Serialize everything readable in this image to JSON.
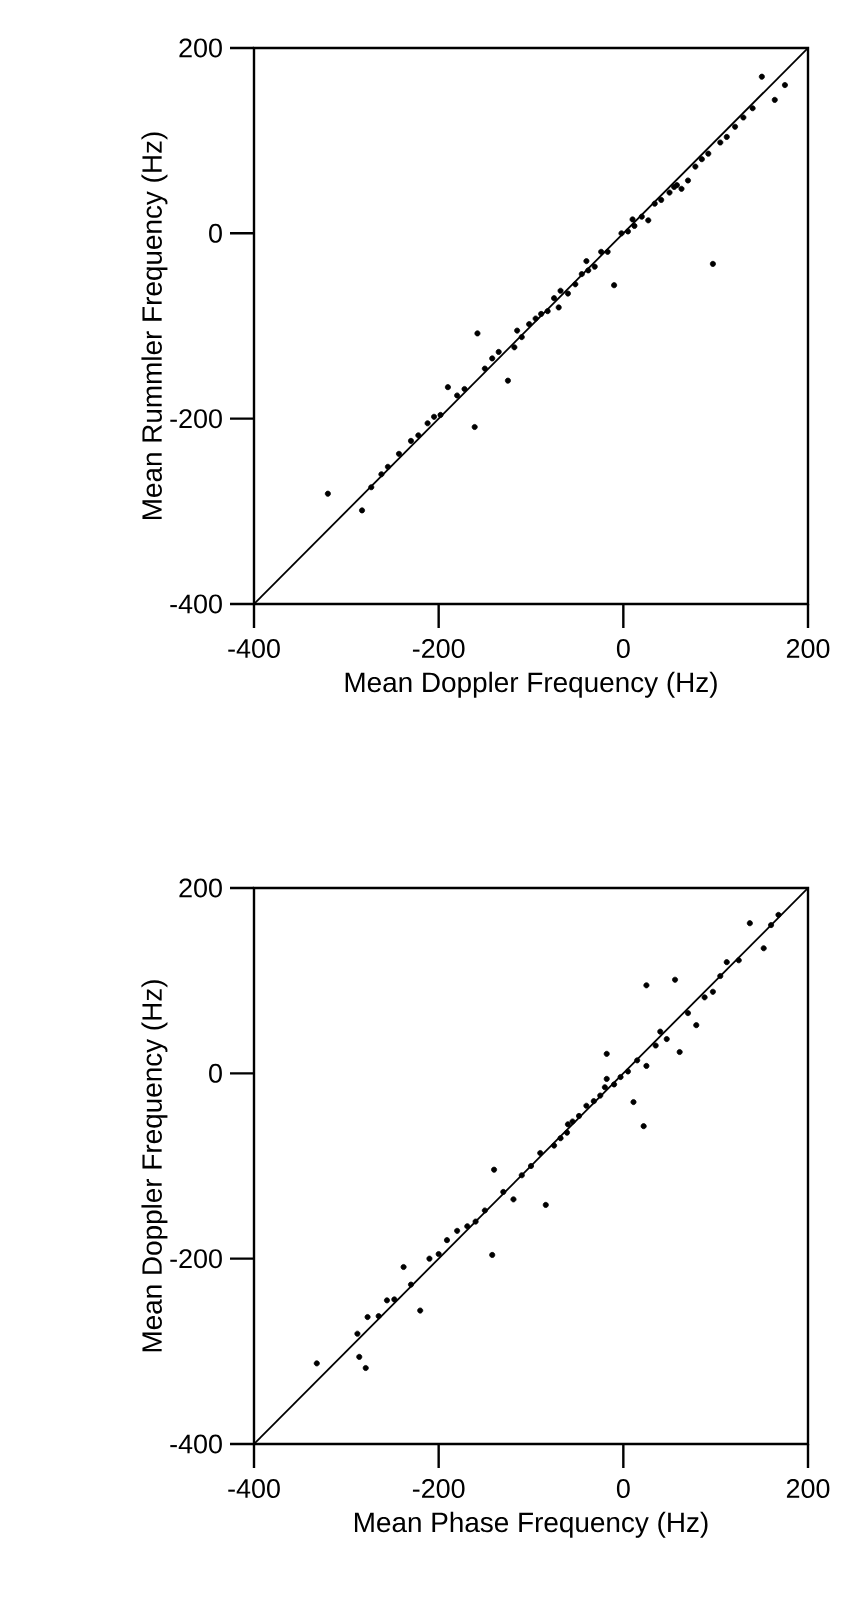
{
  "chart_data": [
    {
      "type": "scatter",
      "xlabel": "Mean Doppler Frequency (Hz)",
      "ylabel": "Mean Rummler Frequency (Hz)",
      "xlim": [
        -400,
        200
      ],
      "ylim": [
        -400,
        200
      ],
      "xticks": [
        -400,
        -200,
        0,
        200
      ],
      "yticks": [
        -400,
        -200,
        0,
        200
      ],
      "grid": false,
      "series": [
        {
          "marker": "circle",
          "color": "#000000",
          "x": [
            -320,
            -283,
            -273,
            -262,
            -255,
            -243,
            -230,
            -222,
            -212,
            -205,
            -198,
            -190,
            -180,
            -172,
            -161,
            -158,
            -150,
            -142,
            -135,
            -125,
            -118,
            -110,
            -102,
            -95,
            -89,
            -82,
            -75,
            -68,
            -60,
            -52,
            -45,
            -38,
            -31,
            -24,
            -17,
            -10,
            -2,
            5,
            12,
            20,
            27,
            34,
            41,
            50,
            58,
            63,
            70,
            78,
            85,
            92,
            97,
            105,
            112,
            121,
            130,
            140,
            150,
            164,
            175,
            -115,
            -70,
            -40,
            10,
            55
          ],
          "values": [
            -281,
            -299,
            -274,
            -260,
            -252,
            -238,
            -224,
            -218,
            -205,
            -198,
            -196,
            -166,
            -175,
            -168,
            -209,
            -108,
            -146,
            -135,
            -128,
            -159,
            -123,
            -112,
            -98,
            -92,
            -87,
            -84,
            -70,
            -62,
            -65,
            -55,
            -44,
            -40,
            -36,
            -20,
            -20,
            -56,
            0,
            2,
            8,
            18,
            14,
            32,
            36,
            44,
            52,
            48,
            57,
            72,
            80,
            86,
            -33,
            98,
            104,
            115,
            125,
            135,
            169,
            144,
            160,
            -105,
            -80,
            -30,
            15,
            50
          ]
        },
        {
          "type": "line",
          "color": "#000000",
          "x": [
            -400,
            200
          ],
          "values": [
            -400,
            200
          ]
        }
      ]
    },
    {
      "type": "scatter",
      "xlabel": "Mean Phase Frequency (Hz)",
      "ylabel": "Mean Doppler Frequency (Hz)",
      "xlim": [
        -400,
        200
      ],
      "ylim": [
        -400,
        200
      ],
      "xticks": [
        -400,
        -200,
        0,
        200
      ],
      "yticks": [
        -400,
        -200,
        0,
        200
      ],
      "grid": false,
      "series": [
        {
          "marker": "circle",
          "color": "#000000",
          "x": [
            -332,
            -288,
            -286,
            -279,
            -277,
            -265,
            -256,
            -248,
            -238,
            -230,
            -220,
            -210,
            -200,
            -191,
            -180,
            -169,
            -160,
            -150,
            -142,
            -140,
            -130,
            -119,
            -110,
            -100,
            -90,
            -84,
            -75,
            -68,
            -61,
            -55,
            -48,
            -40,
            -32,
            -25,
            -18,
            -18,
            -10,
            -3,
            5,
            11,
            15,
            22,
            25,
            25,
            35,
            47,
            56,
            61,
            70,
            79,
            88,
            97,
            105,
            112,
            125,
            137,
            152,
            160,
            168,
            -60,
            -20,
            40
          ],
          "values": [
            -313,
            -281,
            -306,
            -318,
            -263,
            -262,
            -245,
            -244,
            -209,
            -228,
            -256,
            -200,
            -195,
            -180,
            -170,
            -165,
            -160,
            -148,
            -196,
            -104,
            -128,
            -136,
            -110,
            -100,
            -86,
            -142,
            -78,
            -70,
            -64,
            -52,
            -46,
            -35,
            -30,
            -24,
            -6,
            21,
            -12,
            -4,
            2,
            -31,
            14,
            -57,
            95,
            8,
            30,
            37,
            101,
            23,
            65,
            52,
            82,
            88,
            105,
            120,
            122,
            162,
            135,
            160,
            171,
            -55,
            -15,
            45
          ]
        },
        {
          "type": "line",
          "color": "#000000",
          "x": [
            -400,
            200
          ],
          "values": [
            -400,
            200
          ]
        }
      ]
    }
  ]
}
